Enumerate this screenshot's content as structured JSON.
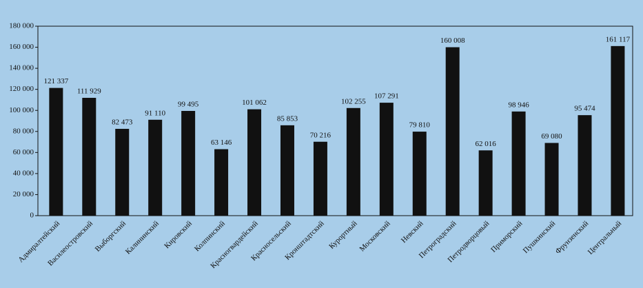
{
  "chart_data": {
    "type": "bar",
    "categories": [
      "Адмиралтейский",
      "Василеостровский",
      "Выборгский",
      "Калининский",
      "Кировский",
      "Колпинский",
      "Красногвардейский",
      "Красносельский",
      "Кронштадтский",
      "Курортный",
      "Московский",
      "Невский",
      "Петроградский",
      "Петродворцовый",
      "Приморский",
      "Пушкинский",
      "Фрунзенский",
      "Центральный"
    ],
    "values": [
      121337,
      111929,
      82473,
      91110,
      99495,
      63146,
      101062,
      85853,
      70216,
      102255,
      107291,
      79810,
      160008,
      62016,
      98946,
      69080,
      95474,
      161117
    ],
    "value_labels": [
      "121 337",
      "111 929",
      "82 473",
      "91 110",
      "99 495",
      "63 146",
      "101 062",
      "85 853",
      "70 216",
      "102 255",
      "107 291",
      "79 810",
      "160 008",
      "62 016",
      "98 946",
      "69 080",
      "95 474",
      "161 117"
    ],
    "color": "#111111",
    "ylim": [
      0,
      180000
    ],
    "yticks": [
      0,
      {
        "value": 20000,
        "label": "20 000"
      },
      {
        "value": 40000,
        "label": "40 000"
      },
      {
        "value": 60000,
        "label": "60 000"
      },
      {
        "value": 80000,
        "label": "80 000"
      },
      {
        "value": 100000,
        "label": "100 000"
      },
      {
        "value": 120000,
        "label": "120 000"
      },
      {
        "value": 140000,
        "label": "140 000"
      },
      {
        "value": 160000,
        "label": "160 000"
      },
      {
        "value": 180000,
        "label": "180 000"
      }
    ],
    "grid": false
  }
}
